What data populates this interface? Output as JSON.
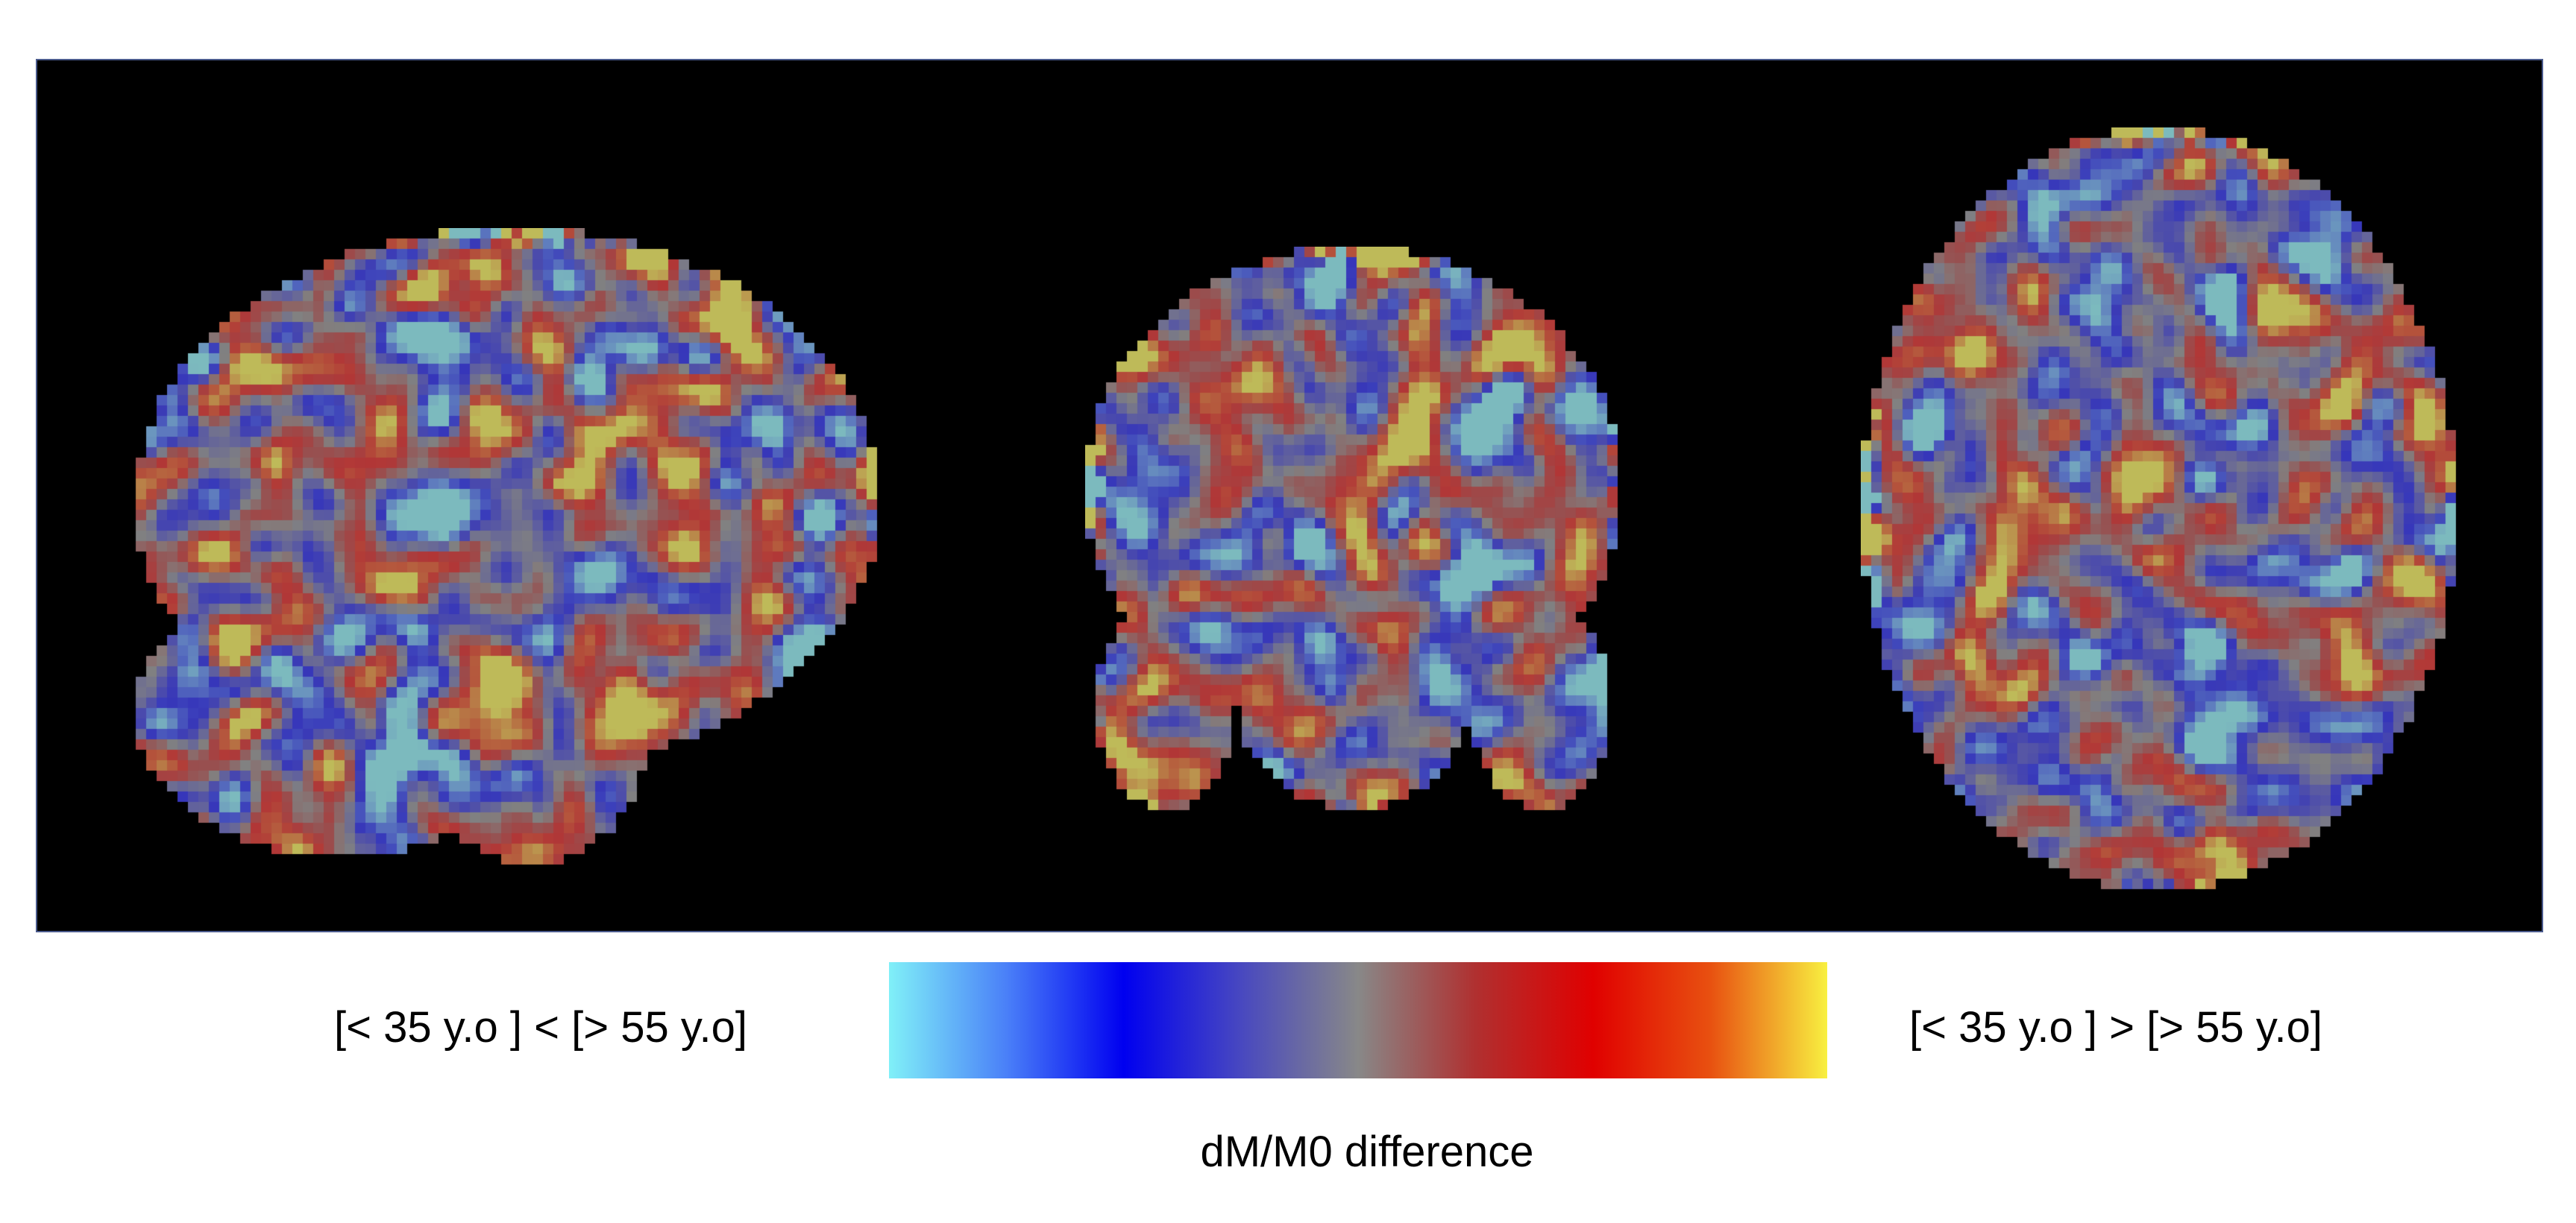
{
  "figure": {
    "left_label": "[< 35 y.o ] < [> 55 y.o]",
    "right_label": "[< 35 y.o ] > [> 55 y.o]",
    "colorbar_label": "dM/M0 difference",
    "colormap": [
      "#80f0f8",
      "#4a80f8",
      "#0000f0",
      "#4848c0",
      "#888888",
      "#b03030",
      "#e00000",
      "#e85010",
      "#f8f040"
    ],
    "views": [
      "sagittal",
      "coronal",
      "axial"
    ]
  }
}
